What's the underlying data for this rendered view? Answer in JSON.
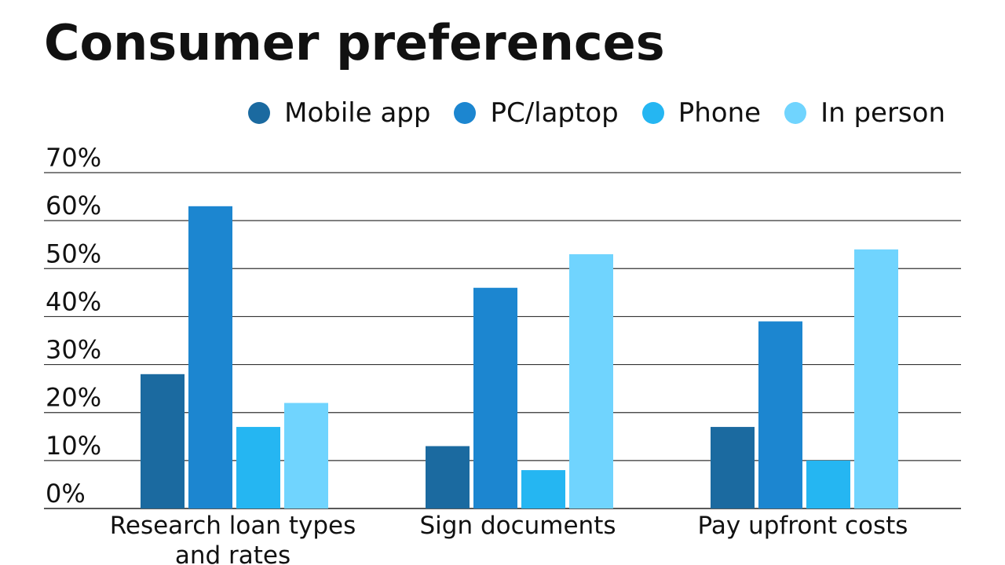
{
  "chart_data": {
    "type": "bar",
    "title": "Consumer preferences",
    "xlabel": "",
    "ylabel": "",
    "ylim": [
      0,
      70
    ],
    "yticks": [
      "0%",
      "10%",
      "20%",
      "30%",
      "40%",
      "50%",
      "60%",
      "70%"
    ],
    "grid": true,
    "legend_position": "top-right",
    "categories": [
      [
        "Research loan types",
        "and rates"
      ],
      [
        "Sign documents"
      ],
      [
        "Pay upfront costs"
      ]
    ],
    "series": [
      {
        "name": "Mobile app",
        "color": "#1b6aa0",
        "values": [
          28,
          13,
          17
        ]
      },
      {
        "name": "PC/laptop",
        "color": "#1c86d0",
        "values": [
          63,
          46,
          39
        ]
      },
      {
        "name": "Phone",
        "color": "#25b6f2",
        "values": [
          17,
          8,
          10
        ]
      },
      {
        "name": "In person",
        "color": "#70d4fe",
        "values": [
          22,
          53,
          54
        ]
      }
    ]
  }
}
